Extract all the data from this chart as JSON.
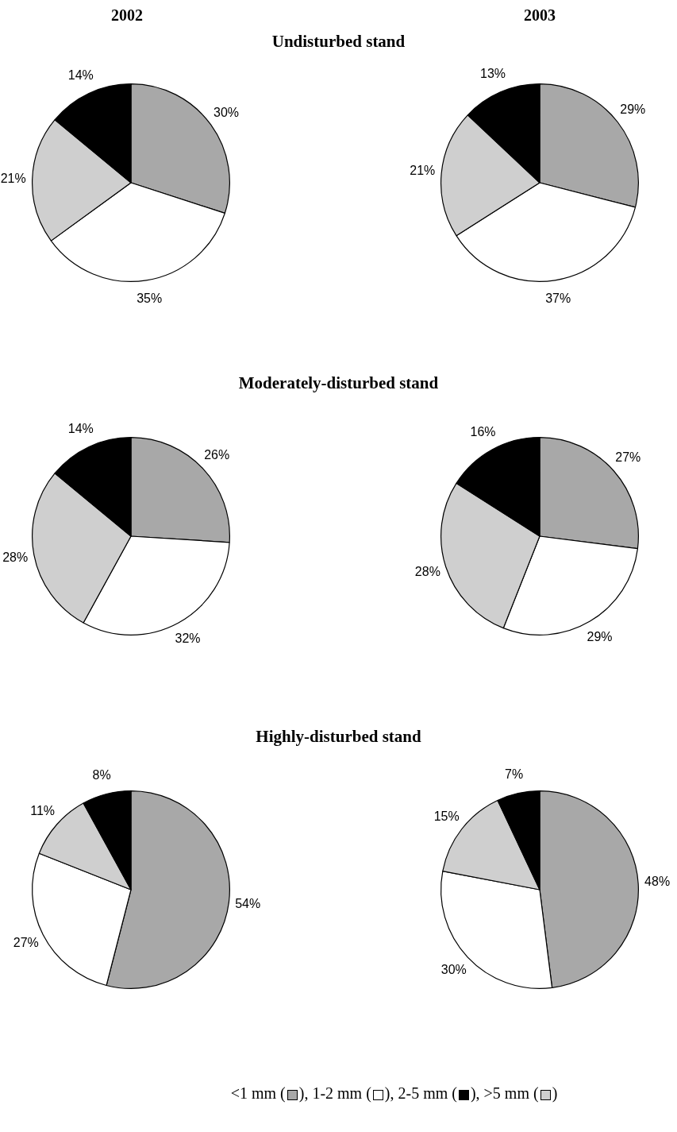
{
  "chart_data": [
    {
      "type": "pie",
      "title": "2002",
      "subtitle": "Undisturbed stand",
      "categories": [
        null,
        null,
        null,
        null
      ],
      "values": [
        30,
        35,
        21,
        14
      ],
      "value_labels": [
        "30%",
        "35%",
        "21%",
        "14%"
      ],
      "colors": [
        "#a8a8a8",
        "#ffffff",
        "#cfcfcf",
        "#000000"
      ]
    },
    {
      "type": "pie",
      "title": "2003",
      "categories": [
        null,
        null,
        null,
        null
      ],
      "values": [
        29,
        37,
        21,
        13
      ],
      "value_labels": [
        "29%",
        "37%",
        "21%",
        "13%"
      ],
      "colors": [
        "#a8a8a8",
        "#ffffff",
        "#cfcfcf",
        "#000000"
      ]
    },
    {
      "type": "pie",
      "subtitle": "Moderately-disturbed stand",
      "categories": [
        null,
        null,
        null,
        null
      ],
      "values": [
        26,
        32,
        28,
        14
      ],
      "value_labels": [
        "26%",
        "32%",
        "28%",
        "14%"
      ],
      "colors": [
        "#a8a8a8",
        "#ffffff",
        "#cfcfcf",
        "#000000"
      ]
    },
    {
      "type": "pie",
      "categories": [
        null,
        null,
        null,
        null
      ],
      "values": [
        27,
        29,
        28,
        16
      ],
      "value_labels": [
        "27%",
        "29%",
        "28%",
        "16%"
      ],
      "colors": [
        "#a8a8a8",
        "#ffffff",
        "#cfcfcf",
        "#000000"
      ]
    },
    {
      "type": "pie",
      "subtitle": "Highly-disturbed stand",
      "categories": [
        null,
        null,
        null,
        null
      ],
      "values": [
        54,
        27,
        11,
        8
      ],
      "value_labels": [
        "54%",
        "27%",
        "11%",
        "8%"
      ],
      "colors": [
        "#a8a8a8",
        "#ffffff",
        "#cfcfcf",
        "#000000"
      ]
    },
    {
      "type": "pie",
      "categories": [
        null,
        null,
        null,
        null
      ],
      "values": [
        48,
        30,
        15,
        7
      ],
      "value_labels": [
        "48%",
        "30%",
        "15%",
        "7%"
      ],
      "colors": [
        "#a8a8a8",
        "#ffffff",
        "#cfcfcf",
        "#000000"
      ],
      "annotations": [
        "<1 mm (",
        "), 1-2 mm (",
        "), 2-5 mm (",
        "), >5 mm (",
        ")"
      ]
    }
  ]
}
